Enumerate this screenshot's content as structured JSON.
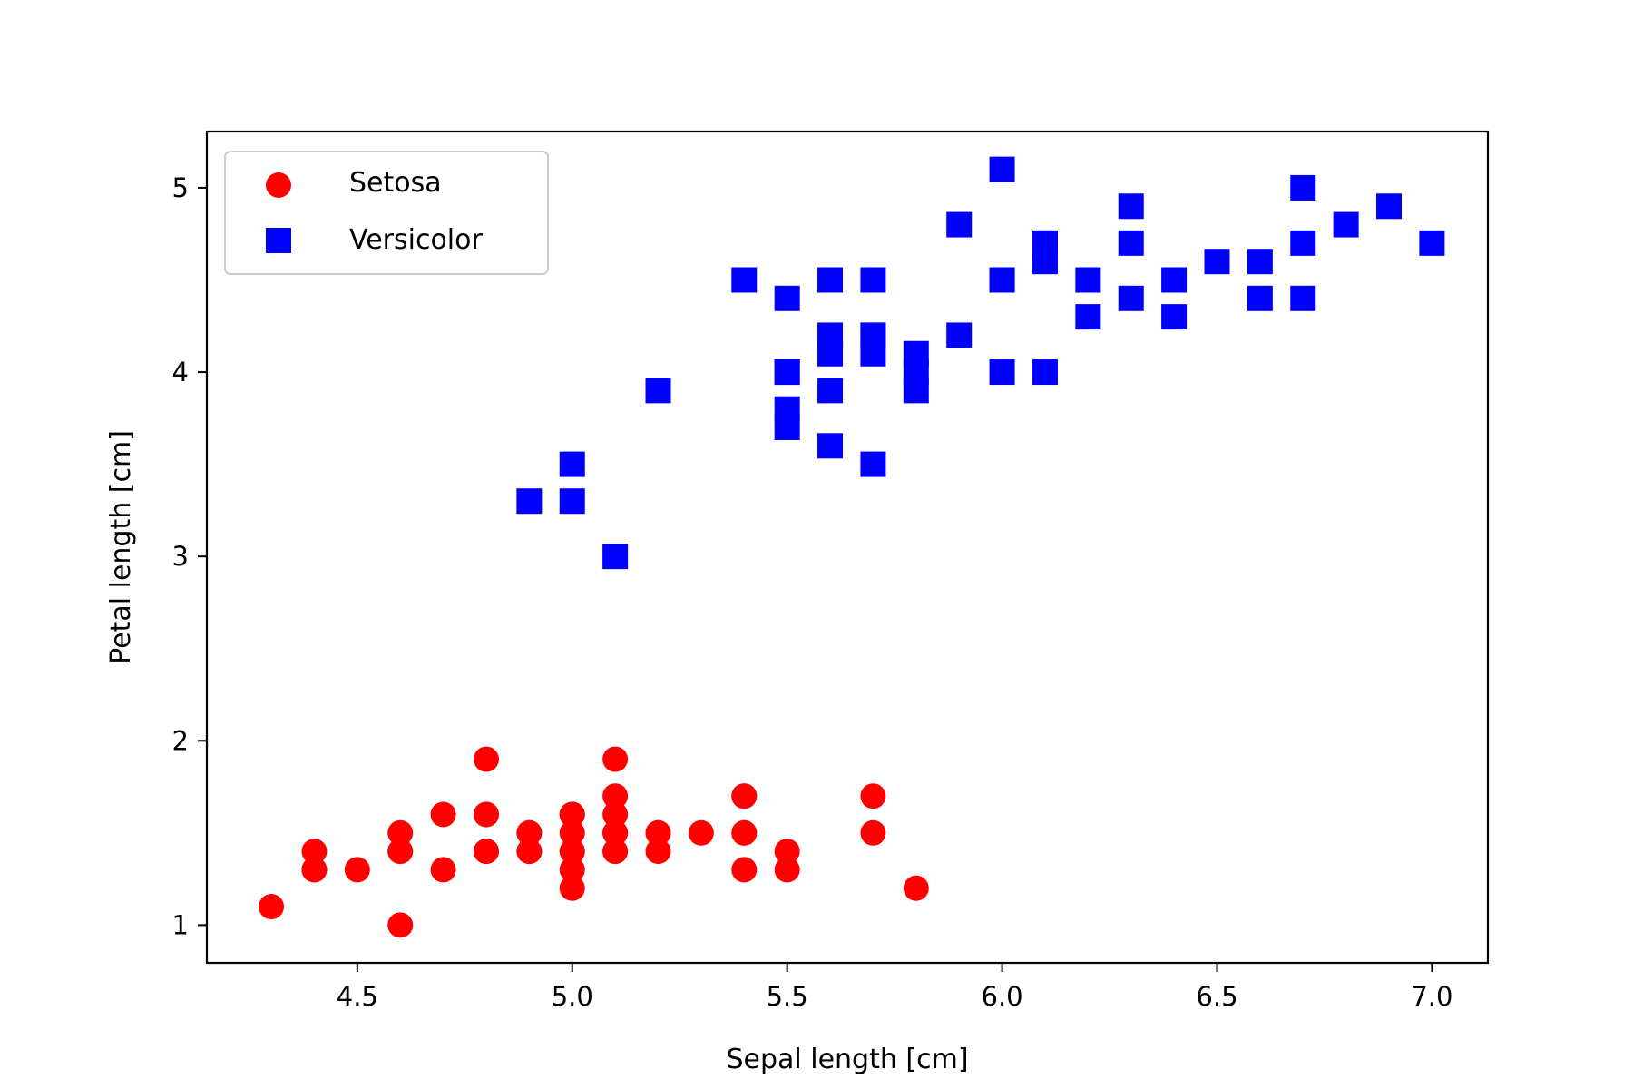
{
  "chart_data": {
    "type": "scatter",
    "title": "",
    "xlabel": "Sepal length [cm]",
    "ylabel": "Petal length [cm]",
    "xlim": [
      4.15,
      7.13
    ],
    "ylim": [
      0.795,
      5.305
    ],
    "xticks": [
      4.5,
      5.0,
      5.5,
      6.0,
      6.5,
      7.0
    ],
    "xtick_labels": [
      "4.5",
      "5.0",
      "5.5",
      "6.0",
      "6.5",
      "7.0"
    ],
    "yticks": [
      1,
      2,
      3,
      4,
      5
    ],
    "ytick_labels": [
      "1",
      "2",
      "3",
      "4",
      "5"
    ],
    "grid": false,
    "legend_position": "upper-left",
    "series": [
      {
        "name": "Setosa",
        "marker": "circle",
        "color": "#ff0000",
        "points": [
          [
            5.1,
            1.4
          ],
          [
            4.9,
            1.4
          ],
          [
            4.7,
            1.3
          ],
          [
            4.6,
            1.5
          ],
          [
            5.0,
            1.4
          ],
          [
            5.4,
            1.7
          ],
          [
            4.6,
            1.4
          ],
          [
            5.0,
            1.5
          ],
          [
            4.4,
            1.4
          ],
          [
            4.9,
            1.5
          ],
          [
            5.4,
            1.5
          ],
          [
            4.8,
            1.6
          ],
          [
            4.8,
            1.4
          ],
          [
            4.3,
            1.1
          ],
          [
            5.8,
            1.2
          ],
          [
            5.7,
            1.5
          ],
          [
            5.4,
            1.3
          ],
          [
            5.1,
            1.4
          ],
          [
            5.7,
            1.7
          ],
          [
            5.1,
            1.5
          ],
          [
            5.4,
            1.7
          ],
          [
            5.1,
            1.5
          ],
          [
            4.6,
            1.0
          ],
          [
            5.1,
            1.7
          ],
          [
            4.8,
            1.9
          ],
          [
            5.0,
            1.6
          ],
          [
            5.0,
            1.6
          ],
          [
            5.2,
            1.5
          ],
          [
            5.2,
            1.4
          ],
          [
            4.7,
            1.6
          ],
          [
            4.8,
            1.6
          ],
          [
            5.4,
            1.5
          ],
          [
            5.2,
            1.5
          ],
          [
            5.5,
            1.4
          ],
          [
            4.9,
            1.5
          ],
          [
            5.0,
            1.2
          ],
          [
            5.5,
            1.3
          ],
          [
            4.9,
            1.4
          ],
          [
            4.4,
            1.3
          ],
          [
            5.1,
            1.5
          ],
          [
            5.0,
            1.3
          ],
          [
            4.5,
            1.3
          ],
          [
            4.4,
            1.3
          ],
          [
            5.0,
            1.6
          ],
          [
            5.1,
            1.9
          ],
          [
            4.8,
            1.4
          ],
          [
            5.1,
            1.6
          ],
          [
            4.6,
            1.4
          ],
          [
            5.3,
            1.5
          ],
          [
            5.0,
            1.4
          ]
        ]
      },
      {
        "name": "Versicolor",
        "marker": "square",
        "color": "#0000ff",
        "points": [
          [
            7.0,
            4.7
          ],
          [
            6.4,
            4.5
          ],
          [
            6.9,
            4.9
          ],
          [
            5.5,
            4.0
          ],
          [
            6.5,
            4.6
          ],
          [
            5.7,
            4.5
          ],
          [
            6.3,
            4.7
          ],
          [
            4.9,
            3.3
          ],
          [
            6.6,
            4.6
          ],
          [
            5.2,
            3.9
          ],
          [
            5.0,
            3.5
          ],
          [
            5.9,
            4.2
          ],
          [
            6.0,
            4.0
          ],
          [
            6.1,
            4.7
          ],
          [
            5.6,
            3.6
          ],
          [
            6.7,
            4.4
          ],
          [
            5.6,
            4.5
          ],
          [
            5.8,
            4.1
          ],
          [
            6.2,
            4.5
          ],
          [
            5.6,
            3.9
          ],
          [
            5.9,
            4.8
          ],
          [
            6.1,
            4.0
          ],
          [
            6.3,
            4.9
          ],
          [
            6.1,
            4.7
          ],
          [
            6.4,
            4.3
          ],
          [
            6.6,
            4.4
          ],
          [
            6.8,
            4.8
          ],
          [
            6.7,
            5.0
          ],
          [
            6.0,
            4.5
          ],
          [
            5.7,
            3.5
          ],
          [
            5.5,
            3.8
          ],
          [
            5.5,
            3.7
          ],
          [
            5.8,
            3.9
          ],
          [
            6.0,
            5.1
          ],
          [
            5.4,
            4.5
          ],
          [
            6.0,
            4.5
          ],
          [
            6.7,
            4.7
          ],
          [
            6.3,
            4.4
          ],
          [
            5.6,
            4.1
          ],
          [
            5.5,
            4.0
          ],
          [
            5.5,
            4.4
          ],
          [
            6.1,
            4.6
          ],
          [
            5.8,
            4.0
          ],
          [
            5.0,
            3.3
          ],
          [
            5.6,
            4.2
          ],
          [
            5.7,
            4.2
          ],
          [
            5.7,
            4.2
          ],
          [
            6.2,
            4.3
          ],
          [
            5.1,
            3.0
          ],
          [
            5.7,
            4.1
          ]
        ]
      }
    ]
  }
}
